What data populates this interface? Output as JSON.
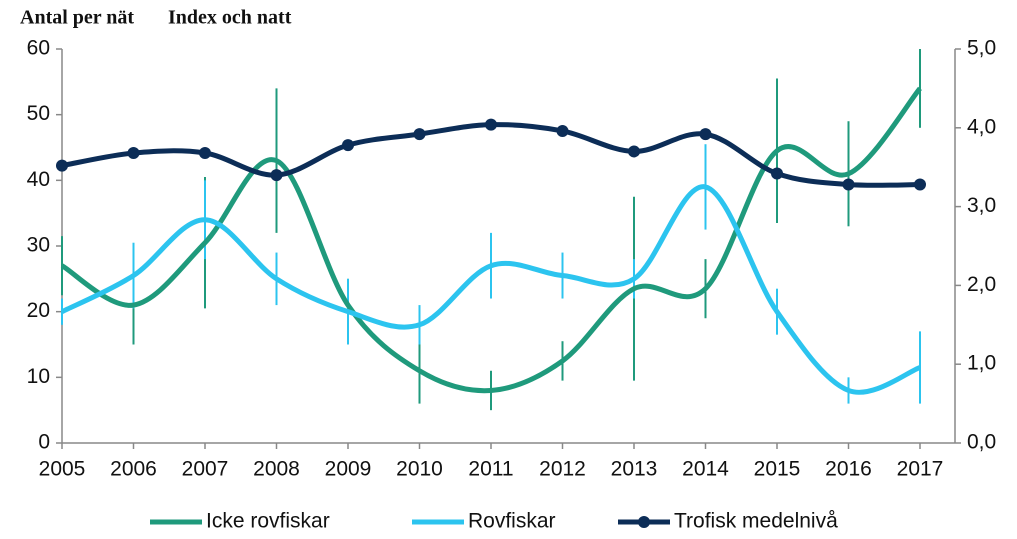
{
  "chart_data": {
    "type": "line",
    "y_title": "Antal per nät",
    "y2_title": "Index och natt",
    "categories": [
      "2005",
      "2006",
      "2007",
      "2008",
      "2009",
      "2010",
      "2011",
      "2012",
      "2013",
      "2014",
      "2015",
      "2016",
      "2017"
    ],
    "ylim": [
      0,
      60
    ],
    "yticks": [
      0,
      10,
      20,
      30,
      40,
      50,
      60
    ],
    "y2lim": [
      0,
      5
    ],
    "y2ticks": [
      {
        "value": 0,
        "label": "0,0"
      },
      {
        "value": 1,
        "label": "1,0"
      },
      {
        "value": 2,
        "label": "2,0"
      },
      {
        "value": 3,
        "label": "3,0"
      },
      {
        "value": 4,
        "label": "4,0"
      },
      {
        "value": 5,
        "label": "5,0"
      }
    ],
    "legend": "bottom",
    "series": [
      {
        "name": "Icke rovfiskar",
        "color": "#1f9a7c",
        "values": [
          27,
          21,
          30.5,
          43,
          21,
          11,
          8,
          12.5,
          23.5,
          23.5,
          44.5,
          41,
          54
        ],
        "errors": [
          4.5,
          6,
          10,
          11,
          4,
          5,
          3,
          3,
          14,
          4.5,
          11,
          8,
          6
        ]
      },
      {
        "name": "Rovfiskar",
        "color": "#2cc4ef",
        "values": [
          20,
          25.5,
          34,
          25,
          20,
          18,
          27,
          25.5,
          25,
          39,
          20,
          8,
          11.5
        ],
        "errors": [
          2,
          5,
          6,
          4,
          5,
          3,
          5,
          3.5,
          3,
          6.5,
          3.5,
          2,
          5.5
        ]
      },
      {
        "name": "Trofisk medelnivå",
        "color": "#0c2d57",
        "axis": "y2",
        "marker": true,
        "values": [
          3.52,
          3.68,
          3.68,
          3.4,
          3.78,
          3.92,
          4.04,
          3.96,
          3.7,
          3.92,
          3.42,
          3.28,
          3.28
        ]
      }
    ]
  }
}
